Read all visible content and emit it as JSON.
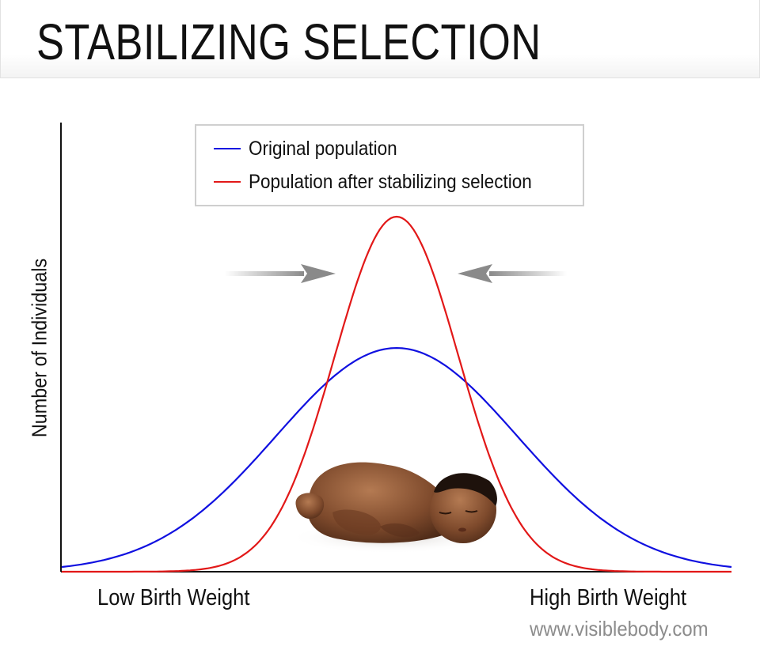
{
  "title": "STABILIZING SELECTION",
  "watermark": "www.visiblebody.com",
  "colors": {
    "original": "#1010e0",
    "after": "#e21818",
    "axis": "#111111",
    "arrow": "#8a8a8a"
  },
  "chart_data": {
    "type": "line",
    "title": "STABILIZING SELECTION",
    "xlabel_low": "Low Birth Weight",
    "xlabel_high": "High Birth Weight",
    "ylabel": "Number of Individuals",
    "xlim": [
      -1,
      1
    ],
    "ylim": [
      0,
      1
    ],
    "grid": false,
    "legend_position": "top-center",
    "series": [
      {
        "name": "Original population",
        "color": "#1010e0",
        "shape": "bell",
        "center": 0,
        "sd": 0.36,
        "peak": 0.63,
        "x": [
          -1.0,
          -0.8,
          -0.6,
          -0.4,
          -0.2,
          0.0,
          0.2,
          0.4,
          0.6,
          0.8,
          1.0
        ],
        "y": [
          0.0,
          0.06,
          0.17,
          0.34,
          0.54,
          0.63,
          0.54,
          0.34,
          0.17,
          0.06,
          0.0
        ]
      },
      {
        "name": "Population after stabilizing selection",
        "color": "#e21818",
        "shape": "bell",
        "center": 0,
        "sd": 0.185,
        "peak": 1.0,
        "x": [
          -1.0,
          -0.8,
          -0.6,
          -0.4,
          -0.2,
          0.0,
          0.2,
          0.4,
          0.6,
          0.8,
          1.0
        ],
        "y": [
          0.0,
          0.0,
          0.01,
          0.1,
          0.56,
          1.0,
          0.56,
          0.1,
          0.01,
          0.0,
          0.0
        ]
      }
    ],
    "annotations": [
      {
        "type": "arrow",
        "direction": "right"
      },
      {
        "type": "arrow",
        "direction": "left"
      }
    ]
  }
}
